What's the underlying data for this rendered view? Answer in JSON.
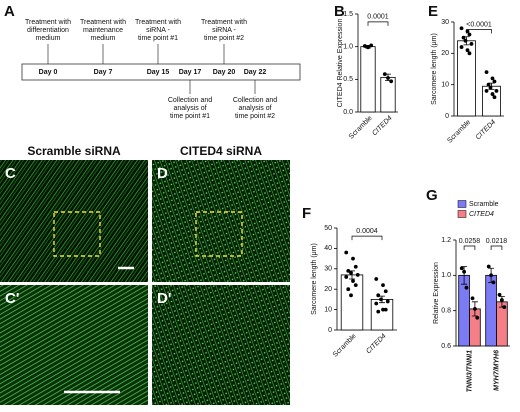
{
  "timeline": {
    "panel": "A",
    "days": [
      {
        "label": "Day 0",
        "above": [
          "Treatment with",
          "differentiation",
          "medium"
        ]
      },
      {
        "label": "Day 7",
        "above": [
          "Treatment with",
          "maintenance",
          "medium"
        ]
      },
      {
        "label": "Day 15",
        "above": [
          "Treatment with",
          "siRNA -",
          "time point #1"
        ]
      },
      {
        "label": "Day 17",
        "below": [
          "Collection and",
          "analysis of",
          "time point #1"
        ]
      },
      {
        "label": "Day 20",
        "above": [
          "Treatment with",
          "siRNA -",
          "time point #2"
        ]
      },
      {
        "label": "Day 22",
        "below": [
          "Collection and",
          "analysis of",
          "time point #2"
        ]
      }
    ]
  },
  "images": [
    {
      "panel": "C",
      "title": "Scramble siRNA"
    },
    {
      "panel": "D",
      "title": "CITED4 siRNA"
    },
    {
      "panel": "C'"
    },
    {
      "panel": "D'"
    }
  ],
  "chart_data": [
    {
      "type": "bar",
      "panel": "B",
      "ylabel": "CITED4 Relative Expression",
      "categories": [
        "Scramble",
        "CITED4"
      ],
      "values": [
        1.0,
        0.53
      ],
      "errors": [
        0.02,
        0.05
      ],
      "points": [
        [
          1.01,
          0.99,
          1.02
        ],
        [
          0.58,
          0.52,
          0.47
        ]
      ],
      "ylim": [
        0,
        1.5
      ],
      "yticks": [
        {
          "value": 0,
          "label": "0.0"
        },
        {
          "value": 0.5,
          "label": "0.5"
        },
        {
          "value": 1,
          "label": "1.0"
        },
        {
          "value": 1.5,
          "label": "1.5"
        }
      ],
      "annotation": "0.0001",
      "color": "#ffffff"
    },
    {
      "type": "bar",
      "panel": "E",
      "ylabel": "Sarcomere length (μm)",
      "categories": [
        "Scramble",
        "CITED4"
      ],
      "values": [
        24,
        9.5
      ],
      "errors": [
        1.3,
        1.0
      ],
      "points": [
        [
          28,
          27,
          26,
          25,
          24,
          23,
          22,
          21,
          20
        ],
        [
          14,
          12,
          11,
          10,
          9,
          8,
          8,
          7,
          6
        ]
      ],
      "ylim": [
        0,
        30
      ],
      "yticks": [
        0,
        10,
        20,
        30
      ],
      "annotation": "<0.0001",
      "color": "#ffffff"
    },
    {
      "type": "bar",
      "panel": "F",
      "ylabel": "Sarcomere length (μm)",
      "categories": [
        "Scramble",
        "CITED4"
      ],
      "values": [
        27,
        15
      ],
      "errors": [
        2,
        1.6
      ],
      "points": [
        [
          38,
          35,
          31,
          29,
          28,
          27,
          26,
          24,
          22,
          20,
          17
        ],
        [
          25,
          22,
          19,
          17,
          15,
          14,
          13,
          10,
          10,
          9
        ]
      ],
      "ylim": [
        0,
        50
      ],
      "yticks": [
        0,
        10,
        20,
        30,
        40,
        50
      ],
      "annotation": "0.0004",
      "color": "#ffffff"
    },
    {
      "type": "grouped_bar",
      "panel": "G",
      "ylabel": "Relative Expression",
      "categories": [
        "TNNI3/TNNI1",
        "MYH7/MYH6"
      ],
      "series": [
        {
          "name": "Scramble",
          "color": "#7b7bf5",
          "values": [
            1.0,
            1.0
          ],
          "errors": [
            0.05,
            0.04
          ],
          "points": [
            [
              1.04,
              1.02,
              0.93
            ],
            [
              1.05,
              1.0,
              0.96
            ]
          ]
        },
        {
          "name": "CITED4",
          "color": "#f47f86",
          "values": [
            0.81,
            0.85
          ],
          "errors": [
            0.04,
            0.03
          ],
          "points": [
            [
              0.87,
              0.81,
              0.76
            ],
            [
              0.89,
              0.86,
              0.82
            ]
          ]
        }
      ],
      "ylim": [
        0.6,
        1.2
      ],
      "yticks": [
        {
          "value": 0.6,
          "label": "0.6"
        },
        {
          "value": 0.8,
          "label": "0.8"
        },
        {
          "value": 1,
          "label": "1.0"
        },
        {
          "value": 1.2,
          "label": "1.2"
        }
      ],
      "annotations": [
        "0.0258",
        "0.0218"
      ]
    }
  ]
}
